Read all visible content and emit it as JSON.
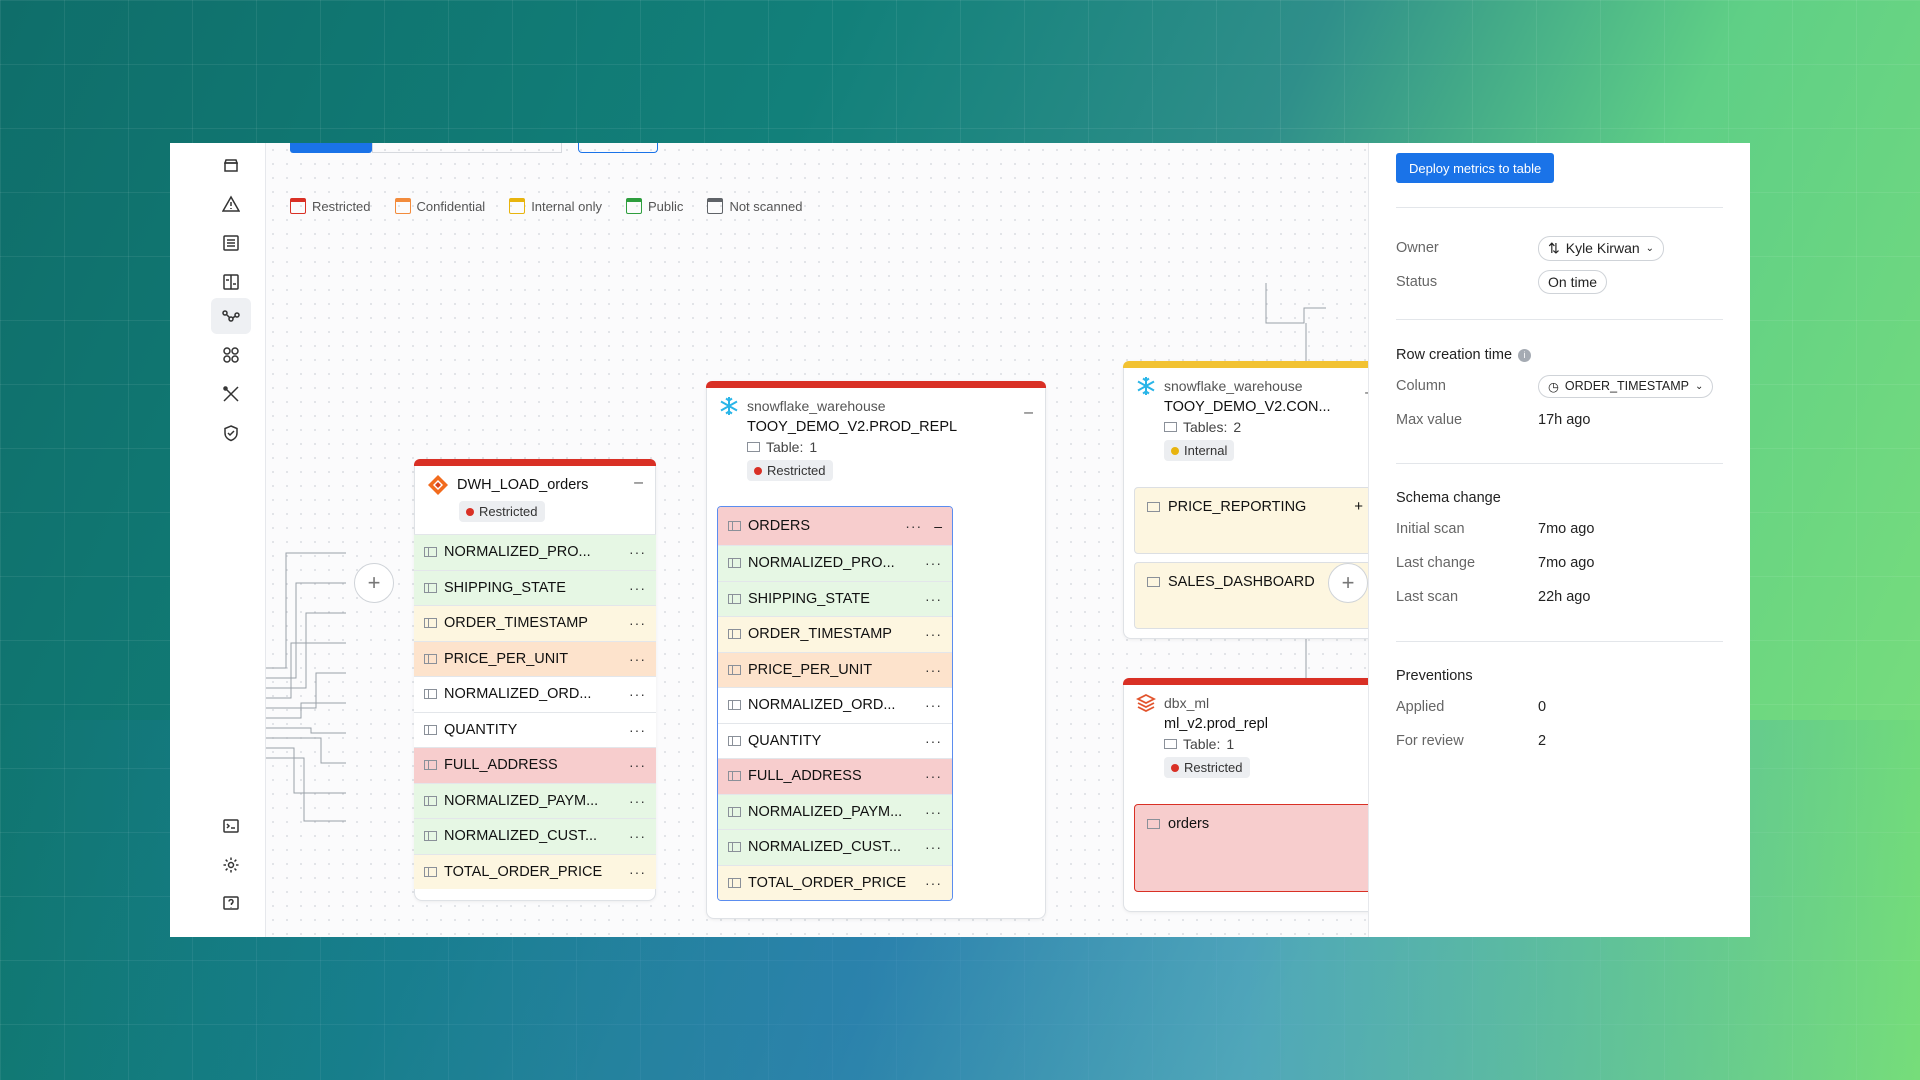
{
  "legend": [
    {
      "label": "Restricted",
      "color": "#d93025"
    },
    {
      "label": "Confidential",
      "color": "#f28b3c"
    },
    {
      "label": "Internal only",
      "color": "#e8b40e"
    },
    {
      "label": "Public",
      "color": "#2e9e3e"
    },
    {
      "label": "Not scanned",
      "color": "#5f6368"
    }
  ],
  "rail_icons": [
    "database-icon",
    "alert-icon",
    "catalog-icon",
    "compare-icon",
    "lineage-icon",
    "apps-icon",
    "tools-icon",
    "shield-icon",
    "terminal-icon",
    "gear-icon",
    "help-icon"
  ],
  "node_dwh": {
    "title": "DWH_LOAD_orders",
    "badge": "Restricted",
    "collapse": "–",
    "columns": [
      {
        "name": "NORMALIZED_PRO...",
        "tone": "green"
      },
      {
        "name": "SHIPPING_STATE",
        "tone": "green"
      },
      {
        "name": "ORDER_TIMESTAMP",
        "tone": "yellow"
      },
      {
        "name": "PRICE_PER_UNIT",
        "tone": "orange"
      },
      {
        "name": "NORMALIZED_ORD...",
        "tone": "white"
      },
      {
        "name": "QUANTITY",
        "tone": "white"
      },
      {
        "name": "FULL_ADDRESS",
        "tone": "red"
      },
      {
        "name": "NORMALIZED_PAYM...",
        "tone": "green"
      },
      {
        "name": "NORMALIZED_CUST...",
        "tone": "green"
      },
      {
        "name": "TOTAL_ORDER_PRICE",
        "tone": "yellow"
      }
    ]
  },
  "node_prod": {
    "source": "snowflake_warehouse",
    "name": "TOOY_DEMO_V2.PROD_REPL",
    "table_label": "Table:",
    "table_count": "1",
    "badge": "Restricted",
    "collapse": "–",
    "table_name": "ORDERS",
    "columns": [
      {
        "name": "NORMALIZED_PRO...",
        "tone": "green"
      },
      {
        "name": "SHIPPING_STATE",
        "tone": "green"
      },
      {
        "name": "ORDER_TIMESTAMP",
        "tone": "yellow"
      },
      {
        "name": "PRICE_PER_UNIT",
        "tone": "orange"
      },
      {
        "name": "NORMALIZED_ORD...",
        "tone": "white"
      },
      {
        "name": "QUANTITY",
        "tone": "white"
      },
      {
        "name": "FULL_ADDRESS",
        "tone": "red"
      },
      {
        "name": "NORMALIZED_PAYM...",
        "tone": "green"
      },
      {
        "name": "NORMALIZED_CUST...",
        "tone": "green"
      },
      {
        "name": "TOTAL_ORDER_PRICE",
        "tone": "yellow"
      }
    ]
  },
  "node_con": {
    "source": "snowflake_warehouse",
    "name": "TOOY_DEMO_V2.CON...",
    "table_label": "Tables:",
    "table_count": "2",
    "badge": "Internal",
    "collapse": "–",
    "tables": [
      "PRICE_REPORTING",
      "SALES_DASHBOARD"
    ]
  },
  "node_dbx": {
    "source": "dbx_ml",
    "name": "ml_v2.prod_repl",
    "table_label": "Table:",
    "table_count": "1",
    "badge": "Restricted",
    "collapse": "–",
    "tables": [
      "orders"
    ]
  },
  "panel": {
    "deploy_label": "Deploy metrics to table",
    "owner_label": "Owner",
    "owner_value": "Kyle Kirwan",
    "status_label": "Status",
    "status_value": "On time",
    "row_creation_title": "Row creation time",
    "column_label": "Column",
    "column_value": "ORDER_TIMESTAMP",
    "max_value_label": "Max value",
    "max_value": "17h ago",
    "schema_title": "Schema change",
    "initial_scan_label": "Initial scan",
    "initial_scan": "7mo ago",
    "last_change_label": "Last change",
    "last_change": "7mo ago",
    "last_scan_label": "Last scan",
    "last_scan": "22h ago",
    "preventions_title": "Preventions",
    "applied_label": "Applied",
    "applied": "0",
    "review_label": "For review",
    "review": "2"
  }
}
